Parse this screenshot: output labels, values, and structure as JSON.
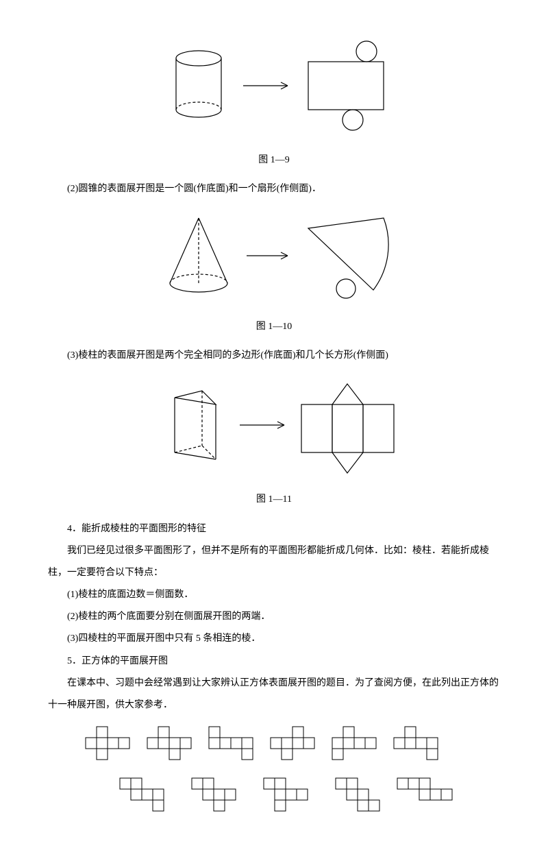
{
  "fig1": {
    "caption": "图 1—9",
    "stroke": "#000000",
    "fill": "#ffffff"
  },
  "para2": "(2)圆锥的表面展开图是一个圆(作底面)和一个扇形(作侧面)．",
  "fig2": {
    "caption": "图 1—10",
    "stroke": "#000000"
  },
  "para3": "(3)棱柱的表面展开图是两个完全相同的多边形(作底面)和几个长方形(作侧面)",
  "fig3": {
    "caption": "图 1—11",
    "stroke": "#000000"
  },
  "h4": "4．能折成棱柱的平面图形的特征",
  "p4a": "我们已经见过很多平面图形了，但并不是所有的平面图形都能折成几何体．比如：棱柱．若能折成棱柱，一定要符合以下特点：",
  "p4b": "(1)棱柱的底面边数＝侧面数．",
  "p4c": "(2)棱柱的两个底面要分别在侧面展开图的两端．",
  "p4d": "(3)四棱柱的平面展开图中只有 5 条相连的棱．",
  "h5": "5．正方体的平面展开图",
  "p5a": "在课本中、习题中会经常遇到让大家辨认正方体表面展开图的题目．为了查阅方便，在此列出正方体的十一种展开图，供大家参考．",
  "nets": {
    "cell": 16,
    "stroke": "#000000"
  }
}
